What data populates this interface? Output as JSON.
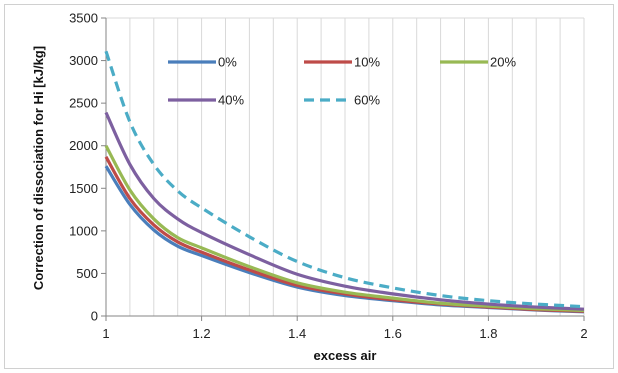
{
  "chart_data": {
    "type": "line",
    "title": "",
    "xlabel": "excess air",
    "ylabel": "Correction of dissociation for Hi [kJ/kg]",
    "xlim": [
      1,
      2
    ],
    "ylim": [
      0,
      3500
    ],
    "x_ticks": [
      "1",
      "1.2",
      "1.4",
      "1.6",
      "1.8",
      "2"
    ],
    "y_ticks": [
      "0",
      "500",
      "1000",
      "1500",
      "2000",
      "2500",
      "3000",
      "3500"
    ],
    "grid": "vertical",
    "legend": "inside-top",
    "x": [
      1.0,
      1.05,
      1.1,
      1.15,
      1.2,
      1.3,
      1.4,
      1.5,
      1.6,
      1.7,
      1.8,
      1.9,
      2.0
    ],
    "series": [
      {
        "name": "0%",
        "color": "#4a7ebb",
        "dash": false,
        "values": [
          1760,
          1310,
          1010,
          820,
          710,
          510,
          340,
          240,
          180,
          130,
          100,
          70,
          50
        ]
      },
      {
        "name": "10%",
        "color": "#be4b48",
        "dash": false,
        "values": [
          1870,
          1380,
          1070,
          870,
          750,
          540,
          360,
          260,
          190,
          140,
          105,
          75,
          55
        ]
      },
      {
        "name": "20%",
        "color": "#98b954",
        "dash": false,
        "values": [
          2000,
          1480,
          1140,
          920,
          800,
          580,
          390,
          280,
          210,
          150,
          115,
          85,
          65
        ]
      },
      {
        "name": "40%",
        "color": "#7d60a0",
        "dash": false,
        "values": [
          2390,
          1780,
          1380,
          1140,
          980,
          720,
          490,
          350,
          260,
          190,
          140,
          105,
          80
        ]
      },
      {
        "name": "60%",
        "color": "#4bacc6",
        "dash": true,
        "values": [
          3110,
          2280,
          1780,
          1470,
          1270,
          930,
          640,
          450,
          330,
          240,
          180,
          140,
          110
        ]
      }
    ]
  }
}
